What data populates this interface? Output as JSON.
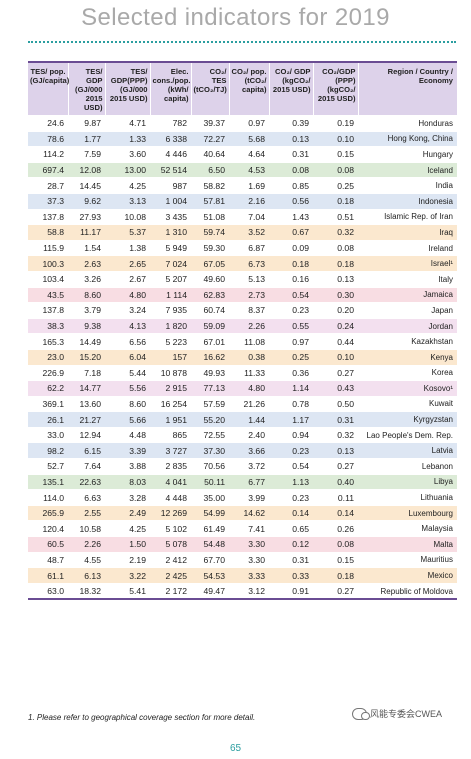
{
  "title": "Selected indicators for 2019",
  "headers": [
    "TES/ pop. (GJ/capita)",
    "TES/ GDP (GJ/000 2015 USD)",
    "TES/ GDP(PPP) (GJ/000 2015 USD)",
    "Elec. cons./pop. (kWh/ capita)",
    "CO₂/ TES (tCO₂/TJ)",
    "CO₂/ pop. (tCO₂/ capita)",
    "CO₂/ GDP (kgCO₂/ 2015 USD)",
    "CO₂/GDP (PPP) (kgCO₂/ 2015 USD)",
    "Region / Country / Economy"
  ],
  "rows": [
    {
      "values": [
        "24.6",
        "9.87",
        "4.71",
        "782",
        "39.37",
        "0.97",
        "0.39",
        "0.19"
      ],
      "region": "Honduras",
      "color": "#ffffff"
    },
    {
      "values": [
        "78.6",
        "1.77",
        "1.33",
        "6 338",
        "72.27",
        "5.68",
        "0.13",
        "0.10"
      ],
      "region": "Hong Kong, China",
      "color": "#dde6f3"
    },
    {
      "values": [
        "114.2",
        "7.59",
        "3.60",
        "4 446",
        "40.64",
        "4.64",
        "0.31",
        "0.15"
      ],
      "region": "Hungary",
      "color": "#ffffff"
    },
    {
      "values": [
        "697.4",
        "12.08",
        "13.00",
        "52 514",
        "6.50",
        "4.53",
        "0.08",
        "0.08"
      ],
      "region": "Iceland",
      "color": "#dcebd7"
    },
    {
      "values": [
        "28.7",
        "14.45",
        "4.25",
        "987",
        "58.82",
        "1.69",
        "0.85",
        "0.25"
      ],
      "region": "India",
      "color": "#ffffff"
    },
    {
      "values": [
        "37.3",
        "9.62",
        "3.13",
        "1 004",
        "57.81",
        "2.16",
        "0.56",
        "0.18"
      ],
      "region": "Indonesia",
      "color": "#dde6f3"
    },
    {
      "values": [
        "137.8",
        "27.93",
        "10.08",
        "3 435",
        "51.08",
        "7.04",
        "1.43",
        "0.51"
      ],
      "region": "Islamic Rep. of Iran",
      "color": "#ffffff"
    },
    {
      "values": [
        "58.8",
        "11.17",
        "5.37",
        "1 310",
        "59.74",
        "3.52",
        "0.67",
        "0.32"
      ],
      "region": "Iraq",
      "color": "#fbe8cf"
    },
    {
      "values": [
        "115.9",
        "1.54",
        "1.38",
        "5 949",
        "59.30",
        "6.87",
        "0.09",
        "0.08"
      ],
      "region": "Ireland",
      "color": "#ffffff"
    },
    {
      "values": [
        "100.3",
        "2.63",
        "2.65",
        "7 024",
        "67.05",
        "6.73",
        "0.18",
        "0.18"
      ],
      "region": "Israel¹",
      "color": "#fbe8cf"
    },
    {
      "values": [
        "103.4",
        "3.26",
        "2.67",
        "5 207",
        "49.60",
        "5.13",
        "0.16",
        "0.13"
      ],
      "region": "Italy",
      "color": "#ffffff"
    },
    {
      "values": [
        "43.5",
        "8.60",
        "4.80",
        "1 114",
        "62.83",
        "2.73",
        "0.54",
        "0.30"
      ],
      "region": "Jamaica",
      "color": "#f8dde3"
    },
    {
      "values": [
        "137.8",
        "3.79",
        "3.24",
        "7 935",
        "60.74",
        "8.37",
        "0.23",
        "0.20"
      ],
      "region": "Japan",
      "color": "#ffffff"
    },
    {
      "values": [
        "38.3",
        "9.38",
        "4.13",
        "1 820",
        "59.09",
        "2.26",
        "0.55",
        "0.24"
      ],
      "region": "Jordan",
      "color": "#f3e0ef"
    },
    {
      "values": [
        "165.3",
        "14.49",
        "6.56",
        "5 223",
        "67.01",
        "11.08",
        "0.97",
        "0.44"
      ],
      "region": "Kazakhstan",
      "color": "#ffffff"
    },
    {
      "values": [
        "23.0",
        "15.20",
        "6.04",
        "157",
        "16.62",
        "0.38",
        "0.25",
        "0.10"
      ],
      "region": "Kenya",
      "color": "#fbe8cf"
    },
    {
      "values": [
        "226.9",
        "7.18",
        "5.44",
        "10 878",
        "49.93",
        "11.33",
        "0.36",
        "0.27"
      ],
      "region": "Korea",
      "color": "#ffffff"
    },
    {
      "values": [
        "62.2",
        "14.77",
        "5.56",
        "2 915",
        "77.13",
        "4.80",
        "1.14",
        "0.43"
      ],
      "region": "Kosovo¹",
      "color": "#f3e0ef"
    },
    {
      "values": [
        "369.1",
        "13.60",
        "8.60",
        "16 254",
        "57.59",
        "21.26",
        "0.78",
        "0.50"
      ],
      "region": "Kuwait",
      "color": "#ffffff"
    },
    {
      "values": [
        "26.1",
        "21.27",
        "5.66",
        "1 951",
        "55.20",
        "1.44",
        "1.17",
        "0.31"
      ],
      "region": "Kyrgyzstan",
      "color": "#dde6f3"
    },
    {
      "values": [
        "33.0",
        "12.94",
        "4.48",
        "865",
        "72.55",
        "2.40",
        "0.94",
        "0.32"
      ],
      "region": "Lao People's Dem. Rep.",
      "color": "#ffffff"
    },
    {
      "values": [
        "98.2",
        "6.15",
        "3.39",
        "3 727",
        "37.30",
        "3.66",
        "0.23",
        "0.13"
      ],
      "region": "Latvia",
      "color": "#dde6f3"
    },
    {
      "values": [
        "52.7",
        "7.64",
        "3.88",
        "2 835",
        "70.56",
        "3.72",
        "0.54",
        "0.27"
      ],
      "region": "Lebanon",
      "color": "#ffffff"
    },
    {
      "values": [
        "135.1",
        "22.63",
        "8.03",
        "4 041",
        "50.11",
        "6.77",
        "1.13",
        "0.40"
      ],
      "region": "Libya",
      "color": "#dcebd7"
    },
    {
      "values": [
        "114.0",
        "6.63",
        "3.28",
        "4 448",
        "35.00",
        "3.99",
        "0.23",
        "0.11"
      ],
      "region": "Lithuania",
      "color": "#ffffff"
    },
    {
      "values": [
        "265.9",
        "2.55",
        "2.49",
        "12 269",
        "54.99",
        "14.62",
        "0.14",
        "0.14"
      ],
      "region": "Luxembourg",
      "color": "#fbe8cf"
    },
    {
      "values": [
        "120.4",
        "10.58",
        "4.25",
        "5 102",
        "61.49",
        "7.41",
        "0.65",
        "0.26"
      ],
      "region": "Malaysia",
      "color": "#ffffff"
    },
    {
      "values": [
        "60.5",
        "2.26",
        "1.50",
        "5 078",
        "54.48",
        "3.30",
        "0.12",
        "0.08"
      ],
      "region": "Malta",
      "color": "#f8dde3"
    },
    {
      "values": [
        "48.7",
        "4.55",
        "2.19",
        "2 412",
        "67.70",
        "3.30",
        "0.31",
        "0.15"
      ],
      "region": "Mauritius",
      "color": "#ffffff"
    },
    {
      "values": [
        "61.1",
        "6.13",
        "3.22",
        "2 425",
        "54.53",
        "3.33",
        "0.33",
        "0.18"
      ],
      "region": "Mexico",
      "color": "#fbe8cf"
    },
    {
      "values": [
        "63.0",
        "18.32",
        "5.41",
        "2 172",
        "49.47",
        "3.12",
        "0.91",
        "0.27"
      ],
      "region": "Republic of Moldova",
      "color": "#ffffff"
    }
  ],
  "footnote": "1. Please refer to geographical coverage section for more detail.",
  "page_number": "65",
  "watermark": "风能专委会CWEA",
  "icons": {
    "watermark_icon": "wechat-icon"
  }
}
